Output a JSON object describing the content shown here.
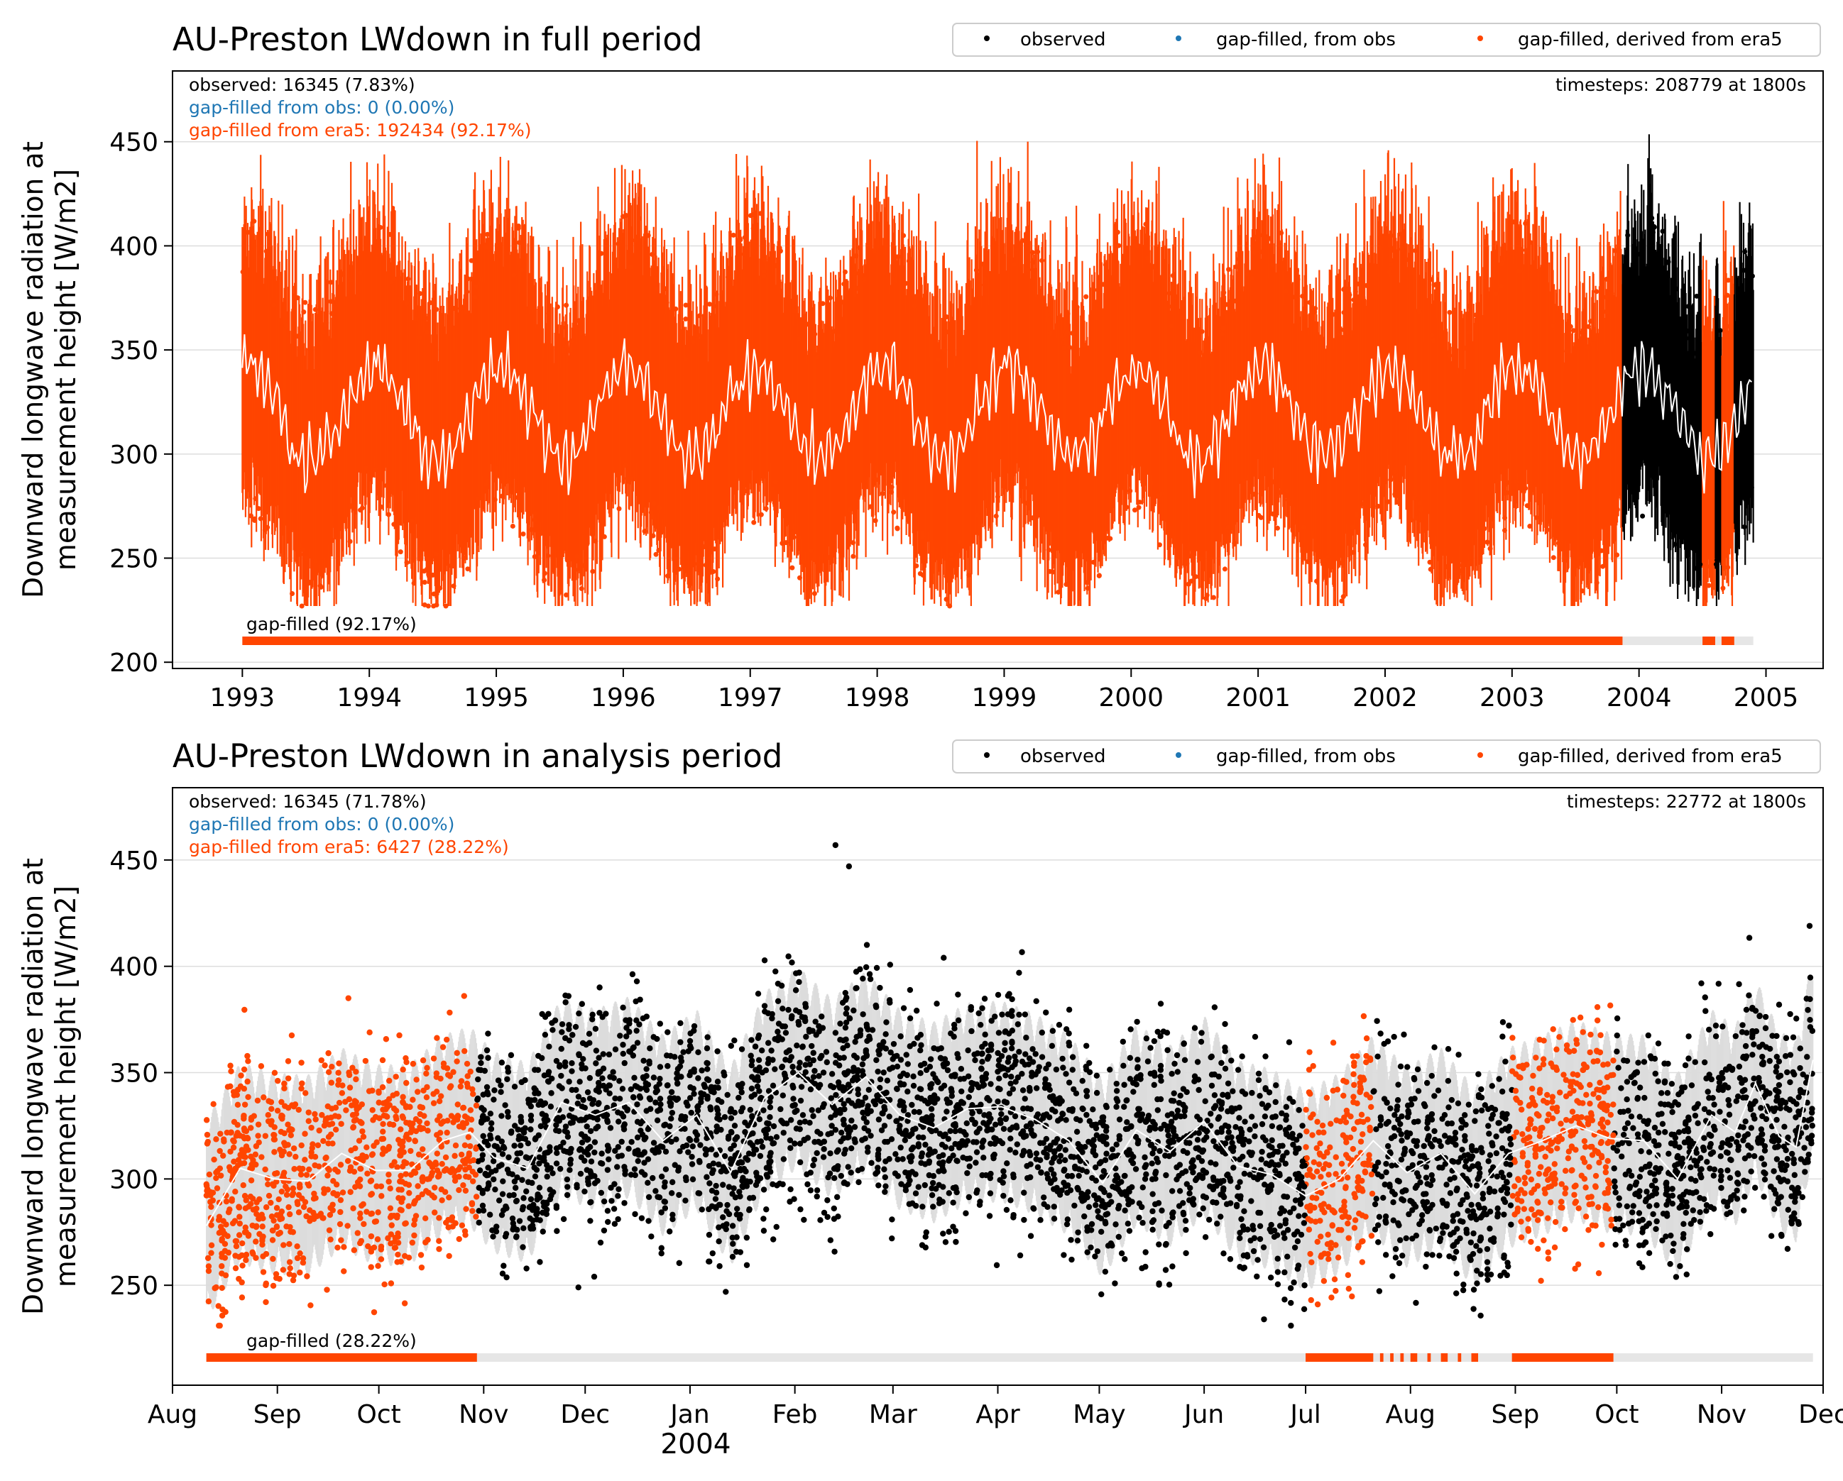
{
  "colors": {
    "observed": "#000000",
    "gap_obs": "#1f77b4",
    "gap_era5": "#ff4500",
    "mean_line": "#ffffff",
    "gapbar_bg": "#e6e6e6",
    "grid": "#dddddd"
  },
  "chart_data": [
    {
      "type": "scatter",
      "title": "AU-Preston LWdown in full period",
      "ylabel": "Downward longwave radiation at\nmeasurement height [W/m2]",
      "xlabel": "",
      "ylim": [
        197,
        484
      ],
      "yticks": [
        200,
        250,
        300,
        350,
        400,
        450
      ],
      "xlim_years": [
        1992.45,
        2005.45
      ],
      "xticks": [
        {
          "x": 1993,
          "label": "1993"
        },
        {
          "x": 1994,
          "label": "1994"
        },
        {
          "x": 1995,
          "label": "1995"
        },
        {
          "x": 1996,
          "label": "1996"
        },
        {
          "x": 1997,
          "label": "1997"
        },
        {
          "x": 1998,
          "label": "1998"
        },
        {
          "x": 1999,
          "label": "1999"
        },
        {
          "x": 2000,
          "label": "2000"
        },
        {
          "x": 2001,
          "label": "2001"
        },
        {
          "x": 2002,
          "label": "2002"
        },
        {
          "x": 2003,
          "label": "2003"
        },
        {
          "x": 2004,
          "label": "2004"
        },
        {
          "x": 2005,
          "label": "2005"
        }
      ],
      "grid": "horizontal",
      "legend": {
        "placement": "top-right",
        "entries": [
          "observed",
          "gap-filled, from obs",
          "gap-filled, derived from era5"
        ]
      },
      "stats": {
        "observed": "observed: 16345 (7.83%)",
        "gap_obs": "gap-filled from obs: 0 (0.00%)",
        "gap_era5": "gap-filled from era5: 192434 (92.17%)",
        "timesteps": "timesteps: 208779 at 1800s",
        "gapbar_label": "gap-filled (92.17%)"
      },
      "data_range_years": [
        1993.0,
        2004.9
      ],
      "segments": [
        {
          "series": "gap-filled, derived from era5",
          "start": 1993.0,
          "end": 2003.87
        },
        {
          "series": "observed",
          "start": 2003.87,
          "end": 2004.5
        },
        {
          "series": "gap-filled, derived from era5",
          "start": 2004.5,
          "end": 2004.6
        },
        {
          "series": "observed",
          "start": 2004.6,
          "end": 2004.65
        },
        {
          "series": "gap-filled, derived from era5",
          "start": 2004.65,
          "end": 2004.75
        },
        {
          "series": "observed",
          "start": 2004.75,
          "end": 2004.9
        }
      ],
      "seasonal_cycle": {
        "mean_center": 320,
        "amplitude": 22,
        "peak_month": "Jan",
        "spread_high": 50,
        "spread_low": 45
      },
      "extremes": {
        "max": 457,
        "min": 227
      },
      "gapbar": [
        [
          1993.0,
          2003.87
        ],
        [
          2004.5,
          2004.6
        ],
        [
          2004.65,
          2004.75
        ]
      ]
    },
    {
      "type": "scatter",
      "title": "AU-Preston LWdown in analysis period",
      "ylabel": "Downward longwave radiation at\nmeasurement height [W/m2]",
      "xlabel": "2004",
      "ylim": [
        203,
        484
      ],
      "yticks": [
        250,
        300,
        350,
        400,
        450
      ],
      "xlim_days": [
        0,
        488
      ],
      "xticks": [
        {
          "x": 0,
          "label": "Aug"
        },
        {
          "x": 31,
          "label": "Sep"
        },
        {
          "x": 61,
          "label": "Oct"
        },
        {
          "x": 92,
          "label": "Nov"
        },
        {
          "x": 122,
          "label": "Dec"
        },
        {
          "x": 153,
          "label": "Jan"
        },
        {
          "x": 184,
          "label": "Feb"
        },
        {
          "x": 213,
          "label": "Mar"
        },
        {
          "x": 244,
          "label": "Apr"
        },
        {
          "x": 274,
          "label": "May"
        },
        {
          "x": 305,
          "label": "Jun"
        },
        {
          "x": 335,
          "label": "Jul"
        },
        {
          "x": 366,
          "label": "Aug"
        },
        {
          "x": 397,
          "label": "Sep"
        },
        {
          "x": 427,
          "label": "Oct"
        },
        {
          "x": 458,
          "label": "Nov"
        },
        {
          "x": 488,
          "label": "Dec"
        }
      ],
      "grid": "horizontal",
      "legend": {
        "placement": "top-right",
        "entries": [
          "observed",
          "gap-filled, from obs",
          "gap-filled, derived from era5"
        ]
      },
      "stats": {
        "observed": "observed: 16345 (71.78%)",
        "gap_obs": "gap-filled from obs: 0 (0.00%)",
        "gap_era5": "gap-filled from era5: 6427 (28.22%)",
        "timesteps": "timesteps: 22772 at 1800s",
        "gapbar_label": "gap-filled (28.22%)"
      },
      "data_range_days": [
        10,
        485
      ],
      "segments": [
        {
          "series": "gap-filled, derived from era5",
          "start": 10,
          "end": 90
        },
        {
          "series": "observed",
          "start": 90,
          "end": 335
        },
        {
          "series": "gap-filled, derived from era5",
          "start": 335,
          "end": 355
        },
        {
          "series": "observed",
          "start": 355,
          "end": 396
        },
        {
          "series": "gap-filled, derived from era5",
          "start": 396,
          "end": 426
        },
        {
          "series": "observed",
          "start": 426,
          "end": 485
        }
      ],
      "weekly_mean": [
        {
          "x": 10,
          "y": 278
        },
        {
          "x": 20,
          "y": 305
        },
        {
          "x": 30,
          "y": 300
        },
        {
          "x": 40,
          "y": 299
        },
        {
          "x": 50,
          "y": 312
        },
        {
          "x": 60,
          "y": 304
        },
        {
          "x": 70,
          "y": 304
        },
        {
          "x": 80,
          "y": 318
        },
        {
          "x": 88,
          "y": 322
        },
        {
          "x": 95,
          "y": 310
        },
        {
          "x": 105,
          "y": 305
        },
        {
          "x": 115,
          "y": 336
        },
        {
          "x": 125,
          "y": 330
        },
        {
          "x": 135,
          "y": 336
        },
        {
          "x": 145,
          "y": 318
        },
        {
          "x": 155,
          "y": 330
        },
        {
          "x": 165,
          "y": 303
        },
        {
          "x": 175,
          "y": 338
        },
        {
          "x": 185,
          "y": 350
        },
        {
          "x": 195,
          "y": 335
        },
        {
          "x": 205,
          "y": 348
        },
        {
          "x": 215,
          "y": 330
        },
        {
          "x": 225,
          "y": 324
        },
        {
          "x": 235,
          "y": 333
        },
        {
          "x": 245,
          "y": 334
        },
        {
          "x": 255,
          "y": 328
        },
        {
          "x": 265,
          "y": 318
        },
        {
          "x": 275,
          "y": 298
        },
        {
          "x": 285,
          "y": 323
        },
        {
          "x": 295,
          "y": 313
        },
        {
          "x": 305,
          "y": 327
        },
        {
          "x": 315,
          "y": 306
        },
        {
          "x": 325,
          "y": 302
        },
        {
          "x": 335,
          "y": 292
        },
        {
          "x": 345,
          "y": 300
        },
        {
          "x": 355,
          "y": 318
        },
        {
          "x": 365,
          "y": 303
        },
        {
          "x": 375,
          "y": 312
        },
        {
          "x": 385,
          "y": 293
        },
        {
          "x": 395,
          "y": 312
        },
        {
          "x": 405,
          "y": 318
        },
        {
          "x": 415,
          "y": 325
        },
        {
          "x": 425,
          "y": 319
        },
        {
          "x": 435,
          "y": 318
        },
        {
          "x": 445,
          "y": 300
        },
        {
          "x": 455,
          "y": 330
        },
        {
          "x": 462,
          "y": 322
        },
        {
          "x": 468,
          "y": 345
        },
        {
          "x": 475,
          "y": 320
        },
        {
          "x": 480,
          "y": 315
        },
        {
          "x": 485,
          "y": 356
        }
      ],
      "extremes": {
        "max": 457,
        "min": 231
      },
      "gapbar": [
        [
          10,
          90
        ],
        [
          335,
          355
        ],
        [
          357,
          358
        ],
        [
          360,
          361
        ],
        [
          363,
          364
        ],
        [
          366,
          368
        ],
        [
          371,
          372
        ],
        [
          375,
          377
        ],
        [
          380,
          381
        ],
        [
          384,
          386
        ],
        [
          396,
          426
        ]
      ]
    }
  ]
}
